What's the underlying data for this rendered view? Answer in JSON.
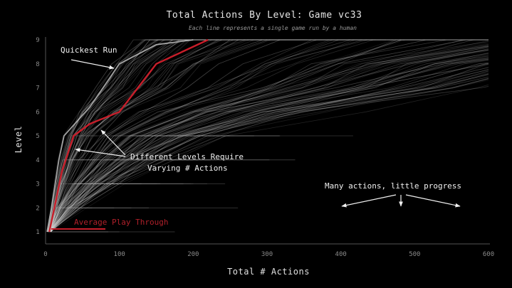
{
  "chart_data": {
    "type": "line",
    "title": "Total Actions By Level: Game vc33",
    "subtitle": "Each line represents a single game run by a human",
    "xlabel": "Total # Actions",
    "ylabel": "Level",
    "xlim": [
      0,
      600
    ],
    "ylim": [
      1,
      9
    ],
    "x_ticks": [
      "0",
      "100",
      "200",
      "300",
      "400",
      "500",
      "600"
    ],
    "y_ticks": [
      "1",
      "2",
      "3",
      "4",
      "5",
      "6",
      "7",
      "8",
      "9"
    ],
    "grid": false,
    "series": [
      {
        "name": "Average Play Through",
        "color": "#c81e2a",
        "x": [
          5,
          12,
          22,
          38,
          60,
          100,
          125,
          150,
          185,
          220
        ],
        "y": [
          1,
          2,
          3.5,
          5,
          5.5,
          6,
          7,
          8,
          8.5,
          9
        ]
      },
      {
        "name": "Quickest Run",
        "color": "#bdbdbd",
        "x": [
          2,
          8,
          18,
          25,
          60,
          100,
          150,
          200
        ],
        "y": [
          1,
          2,
          4,
          5,
          6.2,
          8,
          8.8,
          9
        ]
      }
    ],
    "annotations": [
      {
        "text": "Quickest Run"
      },
      {
        "text": "Different Levels Require"
      },
      {
        "text": "Varying # Actions"
      },
      {
        "text": "Many actions, little progress"
      },
      {
        "text": "Average Play Through"
      }
    ]
  }
}
